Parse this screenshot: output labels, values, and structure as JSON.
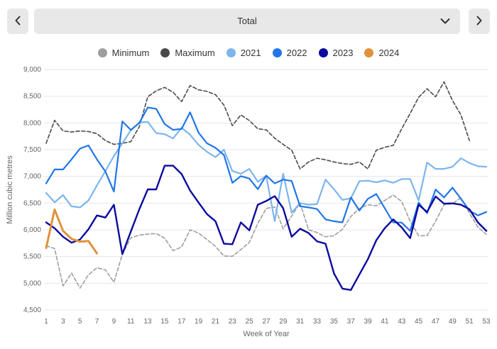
{
  "toolbar": {
    "selector_value": "Total",
    "prev_icon": "chevron-left",
    "next_icon": "chevron-right",
    "dropdown_icon": "chevron-down"
  },
  "chart_data": {
    "type": "line",
    "title": "",
    "xlabel": "Week of Year",
    "ylabel": "Million cubic metres",
    "ylim": [
      4500,
      9000
    ],
    "y_step": 500,
    "xlim": [
      1,
      53
    ],
    "x_tick_step": 2,
    "grid": "horizontal",
    "legend_position": "top-center",
    "x": [
      1,
      2,
      3,
      4,
      5,
      6,
      7,
      8,
      9,
      10,
      11,
      12,
      13,
      14,
      15,
      16,
      17,
      18,
      19,
      20,
      21,
      22,
      23,
      24,
      25,
      26,
      27,
      28,
      29,
      30,
      31,
      32,
      33,
      34,
      35,
      36,
      37,
      38,
      39,
      40,
      41,
      42,
      43,
      44,
      45,
      46,
      47,
      48,
      49,
      50,
      51,
      52,
      53
    ],
    "series": [
      {
        "name": "Minimum",
        "color": "#9e9e9e",
        "dashed": true,
        "width": 1.6,
        "values": [
          5700,
          5650,
          4950,
          5190,
          4910,
          5160,
          5290,
          5250,
          5020,
          5540,
          5850,
          5900,
          5920,
          5930,
          5845,
          5610,
          5680,
          6000,
          5940,
          5820,
          5690,
          5510,
          5505,
          5630,
          5765,
          6120,
          6400,
          6430,
          6020,
          6260,
          6500,
          6000,
          5950,
          5870,
          5890,
          6010,
          6250,
          6400,
          6470,
          6450,
          6550,
          6650,
          6530,
          6160,
          5890,
          5890,
          6160,
          6470,
          6490,
          6600,
          6310,
          6050,
          5915
        ]
      },
      {
        "name": "Maximum",
        "color": "#4a4a4a",
        "dashed": true,
        "width": 1.6,
        "values": [
          7620,
          8050,
          7850,
          7830,
          7850,
          7840,
          7800,
          7670,
          7600,
          7620,
          7650,
          7930,
          8490,
          8600,
          8665,
          8575,
          8400,
          8700,
          8620,
          8590,
          8530,
          8335,
          7950,
          8150,
          8045,
          7890,
          7870,
          7715,
          7600,
          7490,
          7140,
          7270,
          7340,
          7310,
          7270,
          7240,
          7225,
          7270,
          7140,
          7490,
          7545,
          7580,
          7890,
          8180,
          8480,
          8640,
          8490,
          8770,
          8420,
          8150,
          7670,
          null,
          null
        ]
      },
      {
        "name": "2021",
        "color": "#7cb5ec",
        "dashed": false,
        "width": 2.2,
        "values": [
          6690,
          6515,
          6650,
          6440,
          6420,
          6550,
          6830,
          7100,
          7380,
          7620,
          7860,
          8010,
          8020,
          7810,
          7790,
          7710,
          7910,
          7780,
          7590,
          7460,
          7360,
          7500,
          7100,
          7050,
          7140,
          6900,
          7010,
          6160,
          7050,
          6320,
          6500,
          6470,
          6480,
          6940,
          6760,
          6560,
          6590,
          6910,
          6920,
          6890,
          6925,
          6880,
          6950,
          6950,
          6550,
          7260,
          7140,
          7140,
          7180,
          7340,
          7250,
          7190,
          7180
        ]
      },
      {
        "name": "2022",
        "color": "#2176e8",
        "dashed": false,
        "width": 2.2,
        "values": [
          6870,
          7130,
          7130,
          7320,
          7520,
          7580,
          7320,
          7090,
          6715,
          8030,
          7870,
          8000,
          8290,
          8265,
          7980,
          7870,
          7890,
          8200,
          7820,
          7620,
          7535,
          7400,
          6880,
          7005,
          6960,
          6760,
          7015,
          6870,
          6940,
          6915,
          6440,
          6420,
          6390,
          6195,
          6160,
          6140,
          6605,
          6360,
          6580,
          6670,
          6405,
          6140,
          6135,
          5980,
          6510,
          6310,
          6755,
          6605,
          6790,
          6580,
          6360,
          6270,
          6335
        ]
      },
      {
        "name": "2023",
        "color": "#0b0b9e",
        "dashed": false,
        "width": 2.4,
        "values": [
          6140,
          6030,
          5870,
          5760,
          5820,
          6010,
          6270,
          6230,
          6470,
          5545,
          5965,
          6385,
          6757,
          6757,
          7200,
          7200,
          7045,
          6735,
          6513,
          6295,
          6160,
          5740,
          5730,
          6140,
          5990,
          6470,
          6540,
          6630,
          6405,
          5870,
          6020,
          5940,
          5785,
          5740,
          5185,
          4900,
          4875,
          5165,
          5450,
          5805,
          6030,
          6195,
          6045,
          5845,
          6470,
          6335,
          6625,
          6490,
          6495,
          6470,
          6385,
          6140,
          5980
        ]
      },
      {
        "name": "2024",
        "color": "#e0923a",
        "dashed": false,
        "width": 3,
        "values": [
          5660,
          6380,
          5980,
          5830,
          5780,
          5790,
          5560,
          null,
          null,
          null,
          null,
          null,
          null,
          null,
          null,
          null,
          null,
          null,
          null,
          null,
          null,
          null,
          null,
          null,
          null,
          null,
          null,
          null,
          null,
          null,
          null,
          null,
          null,
          null,
          null,
          null,
          null,
          null,
          null,
          null,
          null,
          null,
          null,
          null,
          null,
          null,
          null,
          null,
          null,
          null,
          null,
          null,
          null
        ]
      }
    ]
  }
}
